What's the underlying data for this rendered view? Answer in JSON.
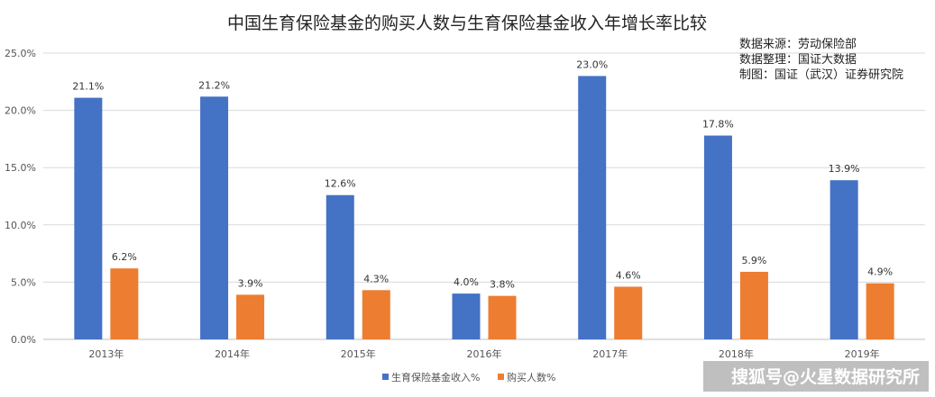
{
  "chart_data": {
    "type": "bar",
    "title": "中国生育保险基金的购买人数与生育保险基金收入年增长率比较",
    "source_lines": [
      "数据来源：劳动保险部",
      "数据整理：国证大数据",
      "制图：国证（武汉）证券研究院"
    ],
    "categories": [
      "2013年",
      "2014年",
      "2015年",
      "2016年",
      "2017年",
      "2018年",
      "2019年"
    ],
    "series": [
      {
        "name": "生育保险基金收入%",
        "color": "#4472C4",
        "values": [
          21.1,
          21.2,
          12.6,
          4.0,
          23.0,
          17.8,
          13.9
        ],
        "labels": [
          "21.1%",
          "21.2%",
          "12.6%",
          "4.0%",
          "23.0%",
          "17.8%",
          "13.9%"
        ]
      },
      {
        "name": "购买人数%",
        "color": "#ED7D31",
        "values": [
          6.2,
          3.9,
          4.3,
          3.8,
          4.6,
          5.9,
          4.9
        ],
        "labels": [
          "6.2%",
          "3.9%",
          "4.3%",
          "3.8%",
          "4.6%",
          "5.9%",
          "4.9%"
        ]
      }
    ],
    "ylim": [
      0,
      25
    ],
    "yticks": [
      "0.0%",
      "5.0%",
      "10.0%",
      "15.0%",
      "20.0%",
      "25.0%"
    ],
    "grid": true,
    "legend_position": "bottom"
  },
  "watermark": "搜狐号@火星数据研究所"
}
